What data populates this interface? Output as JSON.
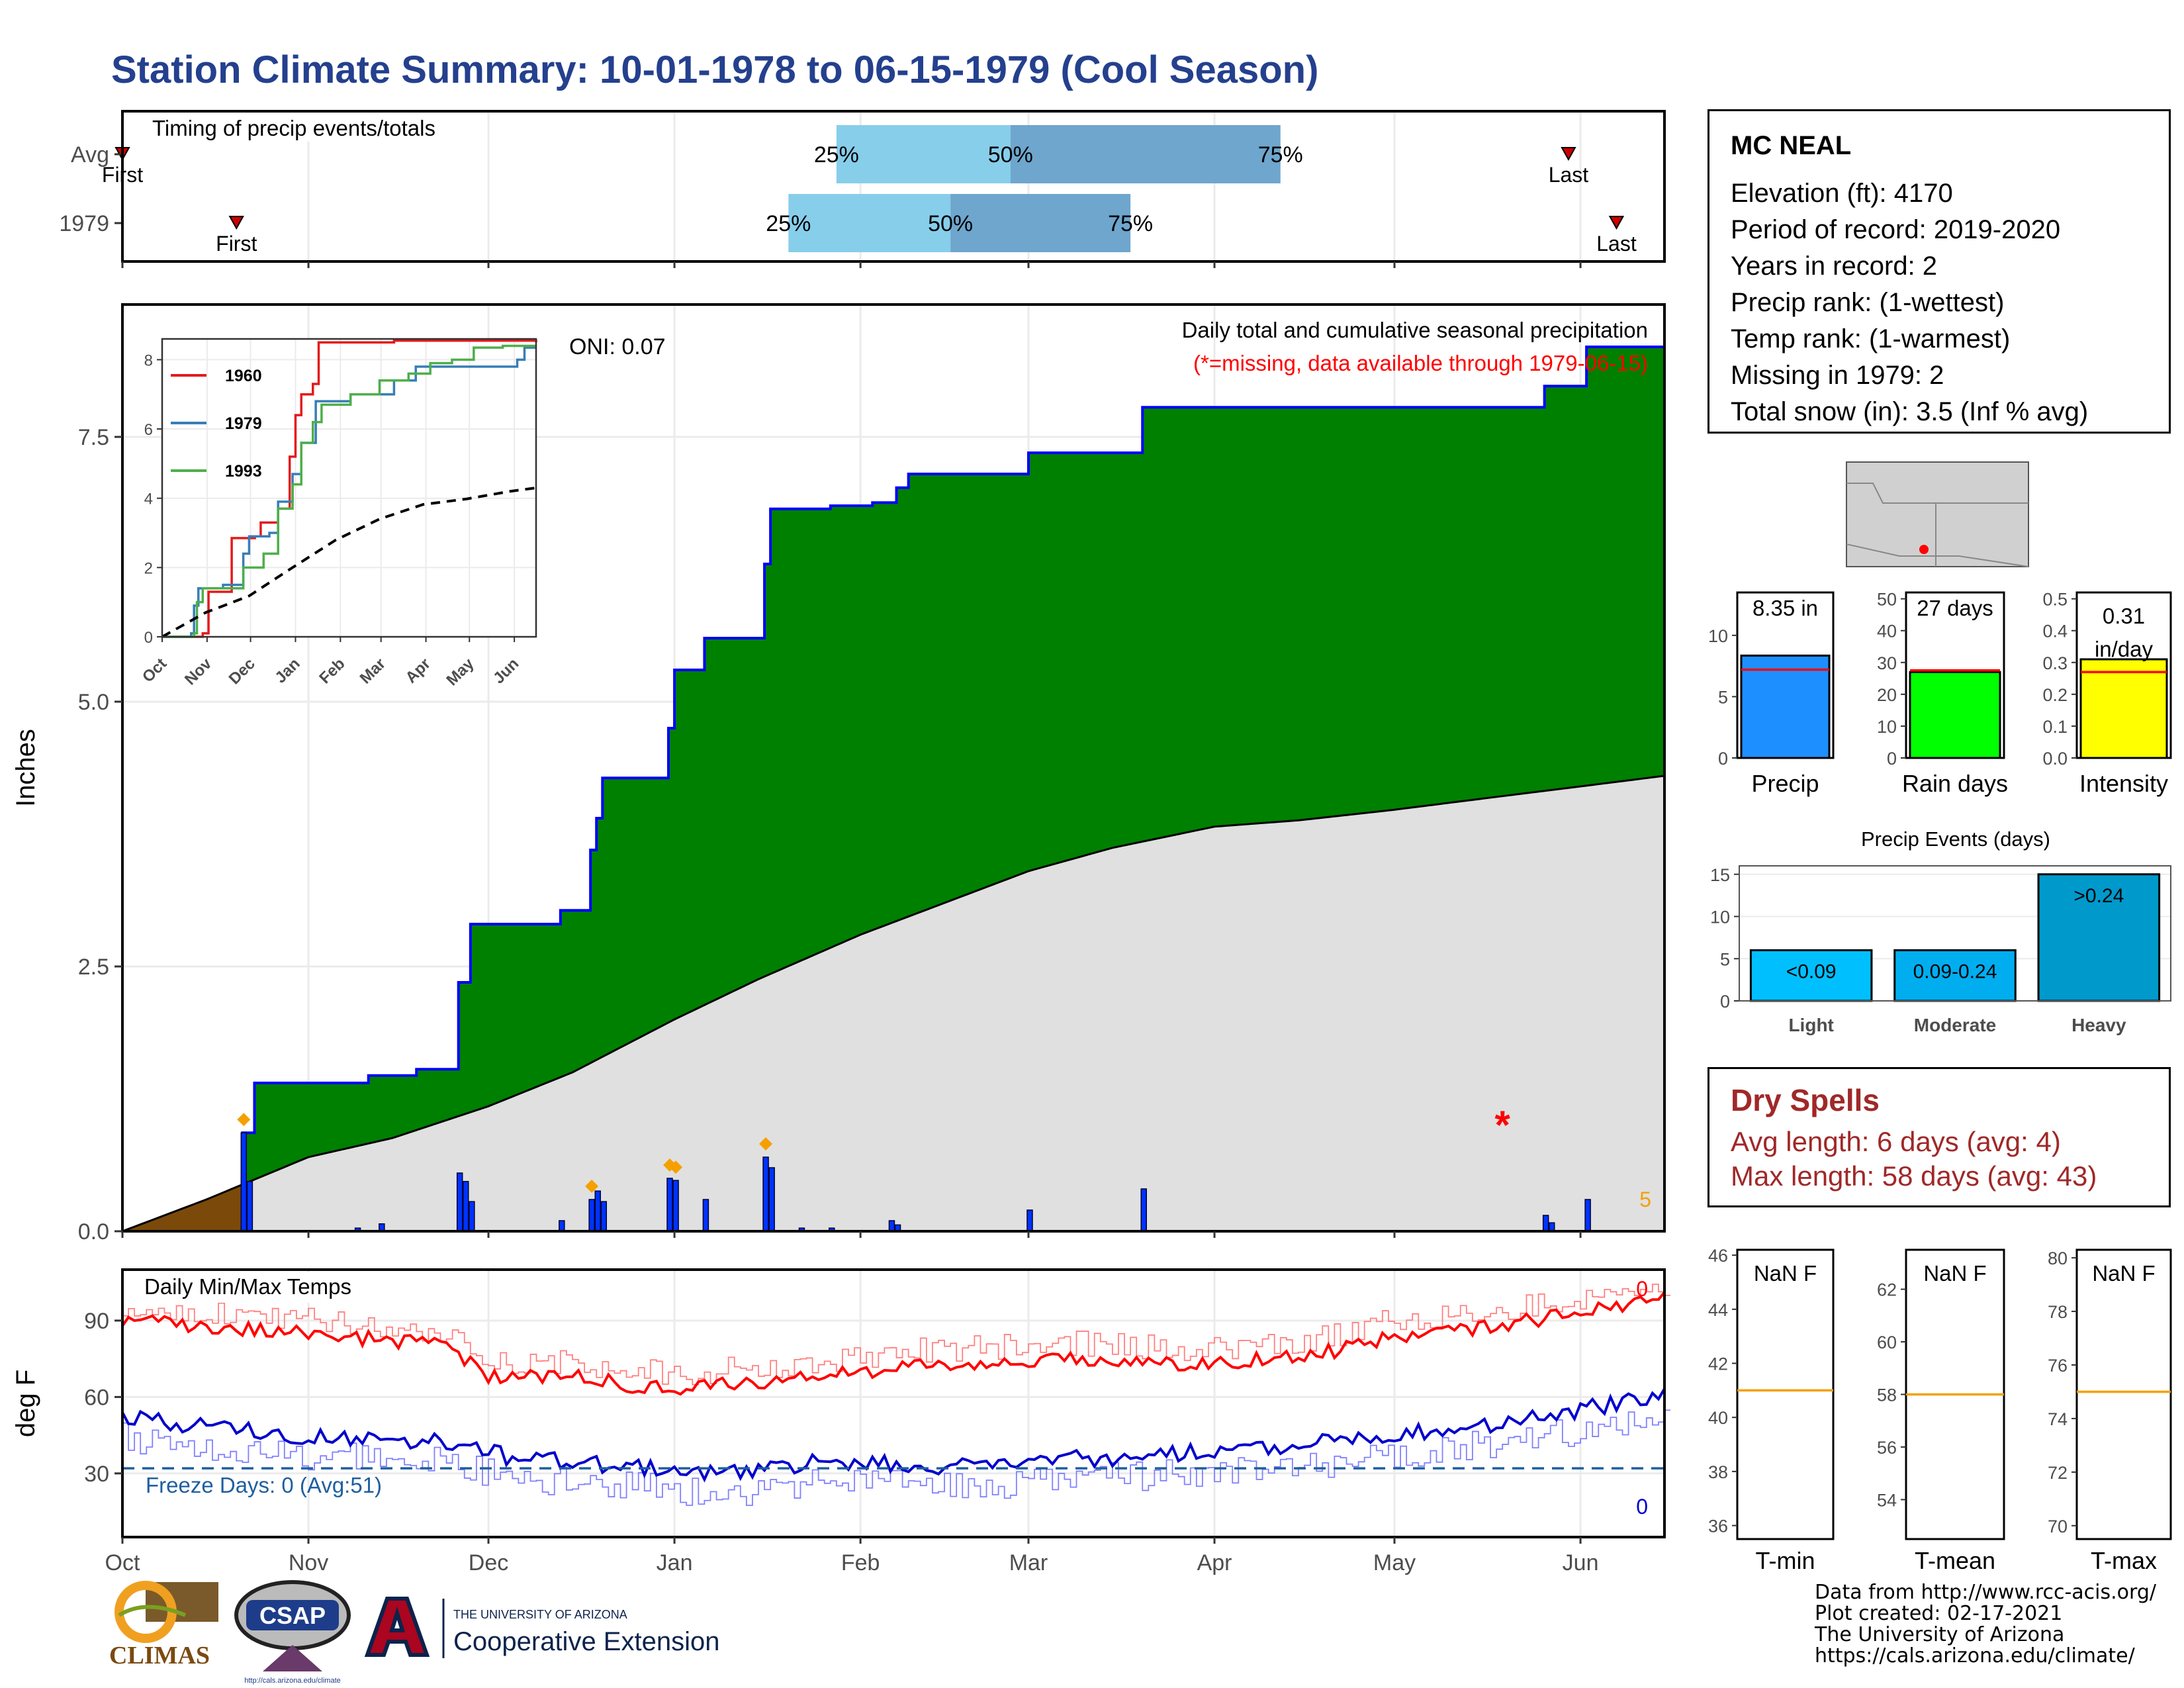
{
  "page_title": "Station Climate Summary: 10-01-1978 to 06-15-1979 (Cool Season)",
  "station": {
    "name": "MC NEAL",
    "lines": [
      "Elevation (ft): 4170",
      "Period of record: 2019-2020",
      "Years in record: 2",
      "Precip rank:  (1-wettest)",
      "Temp rank:  (1-warmest)",
      "Missing in 1979: 2",
      "Total snow (in): 3.5 (Inf % avg)"
    ]
  },
  "dry_spells": {
    "title": "Dry Spells",
    "avg": "Avg length: 6 days (avg: 4)",
    "max": "Max length: 58 days (avg: 43)"
  },
  "credits": {
    "line1": "Data from http://www.rcc-acis.org/",
    "line2": "Plot created: 02-17-2021",
    "line3": "The University of Arizona",
    "line4": "https://cals.arizona.edu/climate/"
  },
  "logos": {
    "climas": "CLIMAS",
    "csap": "CSAP",
    "csap_url": "http://cals.arizona.edu/climate",
    "ua_small": "THE UNIVERSITY OF ARIZONA",
    "ua_big": "Cooperative Extension"
  },
  "colors": {
    "title": "#24408e",
    "precip_fill": "#008000",
    "precip_line": "#0000ff",
    "avg_fill": "#e0e0e0",
    "early_fill": "#7b4a0a",
    "max_temp": "#ff0000",
    "min_temp": "#0000cc",
    "q_light": "#87ceeb",
    "q_dark": "#6ea6cd",
    "dry_text": "#a02828"
  },
  "chart_data": [
    {
      "id": "timing",
      "type": "timing",
      "title": "Timing of precip events/totals",
      "rows": [
        {
          "label": "Avg",
          "p25": "1979-01-28",
          "p50": "1979-02-26",
          "p75": "1979-04-12",
          "first": "1978-10-01",
          "last": "1979-05-30",
          "first_label": "First",
          "last_label": "Last"
        },
        {
          "label": "1979",
          "p25": "1979-01-20",
          "p50": "1979-02-16",
          "p75": "1979-03-18",
          "first": "1978-10-20",
          "last": "1979-06-07",
          "first_label": "First",
          "last_label": "Last"
        }
      ],
      "pct_labels": [
        "25%",
        "50%",
        "75%"
      ]
    },
    {
      "id": "precip",
      "type": "area",
      "title": "Daily total and cumulative seasonal precipitation",
      "subtitle": "(*=missing, data available through 1979-06-15)",
      "oni": "ONI: 0.07",
      "ylabel": "Inches",
      "ylim": [
        0,
        8.75
      ],
      "yticks": [
        "0.0",
        "2.5",
        "5.0",
        "7.5"
      ],
      "xticks": [
        "Oct",
        "Nov",
        "Dec",
        "Jan",
        "Feb",
        "Mar",
        "Apr",
        "May",
        "Jun"
      ],
      "xtick_dates": [
        "1978-10-01",
        "1978-11-01",
        "1978-12-01",
        "1979-01-01",
        "1979-02-01",
        "1979-03-01",
        "1979-04-01",
        "1979-05-01",
        "1979-06-01"
      ],
      "start": "1978-10-01",
      "end": "1979-06-15",
      "cumulative_steps": [
        [
          "1978-10-01",
          0.0
        ],
        [
          "1978-10-21",
          0.93
        ],
        [
          "1978-10-23",
          1.4
        ],
        [
          "1978-11-11",
          1.47
        ],
        [
          "1978-11-19",
          1.53
        ],
        [
          "1978-11-26",
          2.35
        ],
        [
          "1978-11-28",
          2.9
        ],
        [
          "1978-12-13",
          3.03
        ],
        [
          "1978-12-18",
          3.6
        ],
        [
          "1978-12-19",
          3.9
        ],
        [
          "1978-12-20",
          4.28
        ],
        [
          "1978-12-31",
          4.75
        ],
        [
          "1979-01-01",
          5.3
        ],
        [
          "1979-01-06",
          5.6
        ],
        [
          "1979-01-16",
          6.3
        ],
        [
          "1979-01-17",
          6.82
        ],
        [
          "1979-01-27",
          6.85
        ],
        [
          "1979-02-03",
          6.88
        ],
        [
          "1979-02-07",
          7.02
        ],
        [
          "1979-02-09",
          7.15
        ],
        [
          "1979-03-01",
          7.35
        ],
        [
          "1979-03-20",
          7.78
        ],
        [
          "1979-05-26",
          7.98
        ],
        [
          "1979-06-02",
          8.35
        ],
        [
          "1979-06-15",
          8.35
        ]
      ],
      "avg_cumulative": [
        [
          "1978-10-01",
          0.0
        ],
        [
          "1978-10-15",
          0.3
        ],
        [
          "1978-11-01",
          0.7
        ],
        [
          "1978-11-15",
          0.88
        ],
        [
          "1978-12-01",
          1.18
        ],
        [
          "1978-12-15",
          1.5
        ],
        [
          "1979-01-01",
          2.0
        ],
        [
          "1979-01-15",
          2.38
        ],
        [
          "1979-02-01",
          2.8
        ],
        [
          "1979-02-15",
          3.1
        ],
        [
          "1979-03-01",
          3.4
        ],
        [
          "1979-03-15",
          3.62
        ],
        [
          "1979-04-01",
          3.82
        ],
        [
          "1979-04-15",
          3.88
        ],
        [
          "1979-05-01",
          3.98
        ],
        [
          "1979-05-15",
          4.08
        ],
        [
          "1979-06-01",
          4.2
        ],
        [
          "1979-06-15",
          4.3
        ]
      ],
      "daily_bars": [
        [
          "1978-10-21",
          0.93
        ],
        [
          "1978-10-22",
          0.47
        ],
        [
          "1978-11-09",
          0.03
        ],
        [
          "1978-11-13",
          0.07
        ],
        [
          "1978-11-26",
          0.55
        ],
        [
          "1978-11-27",
          0.47
        ],
        [
          "1978-11-28",
          0.28
        ],
        [
          "1978-12-13",
          0.1
        ],
        [
          "1978-12-18",
          0.3
        ],
        [
          "1978-12-19",
          0.38
        ],
        [
          "1978-12-20",
          0.28
        ],
        [
          "1978-12-31",
          0.5
        ],
        [
          "1979-01-01",
          0.48
        ],
        [
          "1979-01-06",
          0.3
        ],
        [
          "1979-01-16",
          0.7
        ],
        [
          "1979-01-17",
          0.6
        ],
        [
          "1979-01-22",
          0.03
        ],
        [
          "1979-01-27",
          0.03
        ],
        [
          "1979-02-06",
          0.1
        ],
        [
          "1979-02-07",
          0.06
        ],
        [
          "1979-03-01",
          0.2
        ],
        [
          "1979-03-20",
          0.4
        ],
        [
          "1979-05-26",
          0.15
        ],
        [
          "1979-05-27",
          0.08
        ],
        [
          "1979-06-02",
          0.3
        ]
      ],
      "snow_markers": [
        [
          "1978-10-21",
          0.93
        ],
        [
          "1978-12-18",
          0.3
        ],
        [
          "1978-12-31",
          0.5
        ],
        [
          "1979-01-01",
          0.48
        ],
        [
          "1979-01-16",
          0.7
        ]
      ],
      "missing_marker": [
        "1979-05-19",
        1.0
      ],
      "early_fill_end": "1978-10-21",
      "corner_label": "5"
    },
    {
      "id": "inset",
      "type": "line",
      "yticks": [
        0,
        2,
        4,
        6,
        8
      ],
      "ylim": [
        0,
        8.6
      ],
      "xticks": [
        "Oct",
        "Nov",
        "Dec",
        "Jan",
        "Feb",
        "Mar",
        "Apr",
        "May",
        "Jun"
      ],
      "series": [
        {
          "name": "1960",
          "color": "#e41a1c",
          "points": [
            [
              0,
              0
            ],
            [
              28,
              0.1
            ],
            [
              32,
              1.3
            ],
            [
              48,
              2.85
            ],
            [
              64,
              2.9
            ],
            [
              68,
              3.3
            ],
            [
              80,
              3.7
            ],
            [
              88,
              5.2
            ],
            [
              92,
              6.4
            ],
            [
              96,
              7.0
            ],
            [
              104,
              7.3
            ],
            [
              108,
              8.5
            ],
            [
              140,
              8.5
            ],
            [
              160,
              8.55
            ],
            [
              258,
              8.5
            ]
          ]
        },
        {
          "name": "1979",
          "color": "#377eb8",
          "points": [
            [
              0,
              0
            ],
            [
              20,
              0.1
            ],
            [
              22,
              0.9
            ],
            [
              25,
              1.4
            ],
            [
              42,
              1.5
            ],
            [
              56,
              2.4
            ],
            [
              60,
              2.9
            ],
            [
              74,
              3.0
            ],
            [
              80,
              3.9
            ],
            [
              90,
              4.7
            ],
            [
              96,
              5.6
            ],
            [
              106,
              6.8
            ],
            [
              130,
              7.0
            ],
            [
              160,
              7.4
            ],
            [
              175,
              7.8
            ],
            [
              240,
              7.8
            ],
            [
              245,
              8.0
            ],
            [
              250,
              8.35
            ],
            [
              258,
              8.35
            ]
          ]
        },
        {
          "name": "1993",
          "color": "#4daf4a",
          "points": [
            [
              0,
              0
            ],
            [
              22,
              0.1
            ],
            [
              24,
              1.0
            ],
            [
              28,
              1.4
            ],
            [
              44,
              1.4
            ],
            [
              56,
              2.0
            ],
            [
              70,
              2.4
            ],
            [
              80,
              3.7
            ],
            [
              90,
              4.4
            ],
            [
              96,
              5.6
            ],
            [
              104,
              6.2
            ],
            [
              110,
              6.7
            ],
            [
              130,
              7.0
            ],
            [
              150,
              7.4
            ],
            [
              170,
              7.6
            ],
            [
              185,
              7.9
            ],
            [
              200,
              8.0
            ],
            [
              215,
              8.35
            ],
            [
              235,
              8.4
            ],
            [
              258,
              8.4
            ]
          ]
        }
      ],
      "average_line": [
        [
          0,
          0
        ],
        [
          30,
          0.7
        ],
        [
          60,
          1.18
        ],
        [
          90,
          2.0
        ],
        [
          120,
          2.8
        ],
        [
          150,
          3.4
        ],
        [
          180,
          3.82
        ],
        [
          210,
          3.98
        ],
        [
          240,
          4.2
        ],
        [
          258,
          4.3
        ]
      ]
    },
    {
      "id": "temps",
      "type": "line",
      "title": "Daily Min/Max Temps",
      "ylabel": "deg F",
      "ylim": [
        5,
        110
      ],
      "yticks": [
        "30",
        "60",
        "90"
      ],
      "xticks": [
        "Oct",
        "Nov",
        "Dec",
        "Jan",
        "Feb",
        "Mar",
        "Apr",
        "May",
        "Jun"
      ],
      "freeze_line": 32,
      "freeze_label": "Freeze Days: 0 (Avg:51)",
      "max_count_label": "0",
      "min_count_label": "0",
      "series": [
        {
          "name": "max",
          "anchors": [
            [
              0,
              90
            ],
            [
              30,
              85
            ],
            [
              55,
              80
            ],
            [
              60,
              68
            ],
            [
              75,
              68
            ],
            [
              90,
              63
            ],
            [
              110,
              66
            ],
            [
              130,
              72
            ],
            [
              160,
              75
            ],
            [
              180,
              73
            ],
            [
              200,
              77
            ],
            [
              210,
              83
            ],
            [
              235,
              90
            ],
            [
              258,
              99
            ]
          ]
        },
        {
          "name": "min",
          "anchors": [
            [
              0,
              52
            ],
            [
              30,
              45
            ],
            [
              55,
              42
            ],
            [
              65,
              36
            ],
            [
              85,
              33
            ],
            [
              100,
              30
            ],
            [
              115,
              34
            ],
            [
              140,
              33
            ],
            [
              170,
              37
            ],
            [
              200,
              42
            ],
            [
              230,
              50
            ],
            [
              258,
              61
            ]
          ]
        }
      ]
    },
    {
      "id": "season-bars",
      "type": "bar",
      "panels": [
        {
          "xlabel": "Precip",
          "value": 8.35,
          "avg": 7.2,
          "ylim": [
            0,
            13.5
          ],
          "yticks": [
            0,
            5,
            10
          ],
          "label": "8.35 in",
          "color": "#1e8fff"
        },
        {
          "xlabel": "Rain days",
          "value": 27,
          "avg": 27.5,
          "ylim": [
            0,
            52
          ],
          "yticks": [
            0,
            10,
            20,
            30,
            40,
            50
          ],
          "label": "27 days",
          "color": "#00ff00"
        },
        {
          "xlabel": "Intensity",
          "value": 0.31,
          "avg": 0.27,
          "ylim": [
            0,
            0.52
          ],
          "yticks": [
            "0.0",
            "0.1",
            "0.2",
            "0.3",
            "0.4",
            "0.5"
          ],
          "label": "0.31 in/day",
          "color": "#ffff00"
        }
      ]
    },
    {
      "id": "precip-events",
      "type": "bar",
      "title": "Precip Events (days)",
      "categories": [
        "Light",
        "Moderate",
        "Heavy"
      ],
      "values": [
        6,
        6,
        15
      ],
      "bar_labels": [
        "<0.09",
        "0.09-0.24",
        ">0.24"
      ],
      "colors": [
        "#00bfff",
        "#00aef0",
        "#0099cc"
      ],
      "ylim": [
        0,
        16
      ],
      "yticks": [
        0,
        5,
        10,
        15
      ]
    },
    {
      "id": "temp-gauges",
      "type": "bar",
      "panels": [
        {
          "xlabel": "T-min",
          "label": "NaN F",
          "avg": 41,
          "ylim": [
            35.5,
            46.2
          ],
          "yticks": [
            36,
            38,
            40,
            42,
            44,
            46
          ]
        },
        {
          "xlabel": "T-mean",
          "label": "NaN F",
          "avg": 58,
          "ylim": [
            52.5,
            63.5
          ],
          "yticks": [
            54,
            56,
            58,
            60,
            62
          ]
        },
        {
          "xlabel": "T-max",
          "label": "NaN F",
          "avg": 75,
          "ylim": [
            69.5,
            80.3
          ],
          "yticks": [
            70,
            72,
            74,
            76,
            78,
            80
          ]
        }
      ]
    }
  ]
}
